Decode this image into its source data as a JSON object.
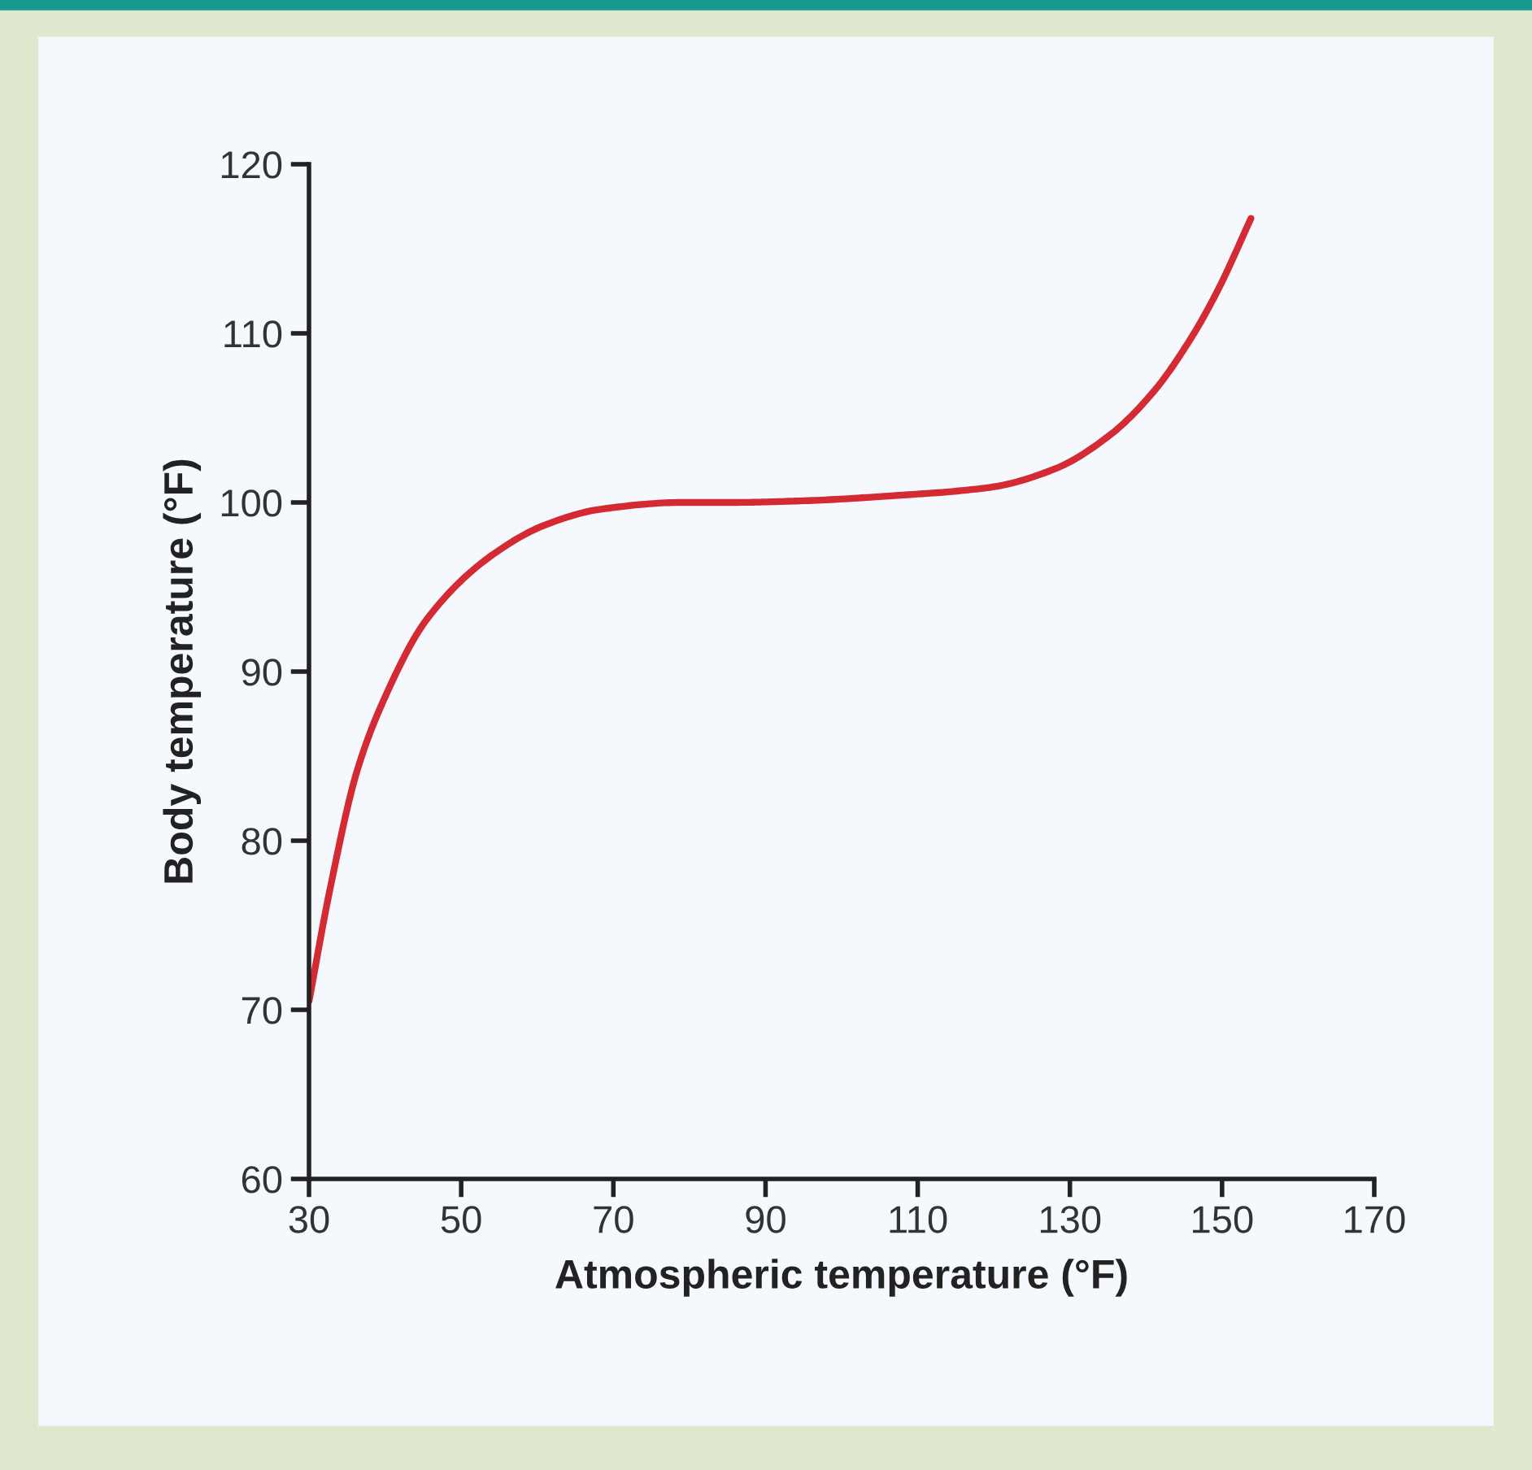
{
  "chart_data": {
    "type": "line",
    "xlabel": "Atmospheric temperature (°F)",
    "ylabel": "Body temperature (°F)",
    "x": [
      30,
      32.7,
      36.3,
      39.8,
      45.5,
      54.1,
      61.2,
      68.3,
      79,
      85.4,
      95,
      106.8,
      119.6,
      128.1,
      135.3,
      140.9,
      145.9,
      149.5,
      153.8
    ],
    "series": [
      {
        "color": "#d42a33",
        "values": [
          70.5,
          77.0,
          84.1,
          88.3,
          93.1,
          96.9,
          98.7,
          99.6,
          100,
          100,
          100.1,
          100.4,
          100.9,
          102.0,
          104.0,
          106.5,
          109.7,
          112.6,
          116.8
        ]
      }
    ],
    "xlim": [
      30,
      170
    ],
    "xticks": [
      30,
      50,
      70,
      90,
      110,
      130,
      150,
      170
    ],
    "ylim": [
      60,
      120
    ],
    "yticks": [
      60,
      70,
      80,
      90,
      100,
      110,
      120
    ],
    "grid": false,
    "marker": "none",
    "line_style": "solid"
  }
}
